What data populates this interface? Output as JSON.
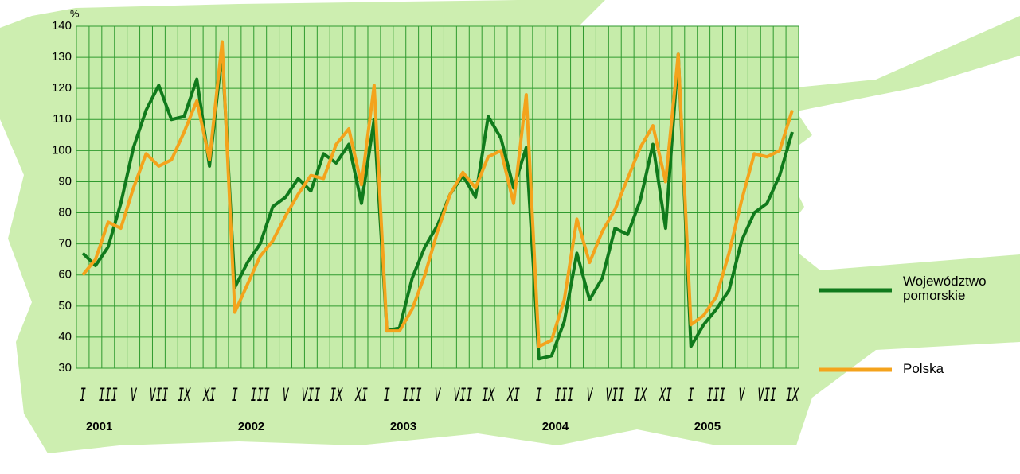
{
  "chart_data": {
    "type": "line",
    "y_unit": "%",
    "categories": [
      "I",
      null,
      "III",
      null,
      "V",
      null,
      "VII",
      null,
      "IX",
      null,
      "XI",
      null,
      "I",
      null,
      "III",
      null,
      "V",
      null,
      "VII",
      null,
      "IX",
      null,
      "XI",
      null,
      "I",
      null,
      "III",
      null,
      "V",
      null,
      "VII",
      null,
      "IX",
      null,
      "XI",
      null,
      "I",
      null,
      "III",
      null,
      "V",
      null,
      "VII",
      null,
      "IX",
      null,
      "XI",
      null,
      "I",
      null,
      "III",
      null,
      "V",
      null,
      "VII",
      null,
      "IX"
    ],
    "year_labels": [
      "2001",
      "2002",
      "2003",
      "2004",
      "2005"
    ],
    "series": [
      {
        "name": "Województwo pomorskie",
        "color": "#107a1c",
        "values": [
          67,
          63,
          69,
          83,
          101,
          113,
          121,
          110,
          111,
          123,
          95,
          132,
          56,
          64,
          70,
          82,
          85,
          91,
          87,
          99,
          96,
          102,
          83,
          110,
          42,
          43,
          59,
          69,
          76,
          86,
          92,
          85,
          111,
          104,
          88,
          101,
          33,
          34,
          45,
          67,
          52,
          59,
          75,
          73,
          84,
          102,
          75,
          131,
          37,
          44,
          49,
          55,
          71,
          80,
          83,
          92,
          106
        ]
      },
      {
        "name": "Polska",
        "color": "#f4a31c",
        "values": [
          60,
          65,
          77,
          75,
          88,
          99,
          95,
          97,
          106,
          116,
          97,
          135,
          48,
          57,
          66,
          71,
          79,
          86,
          92,
          91,
          102,
          107,
          89,
          121,
          42,
          42,
          49,
          60,
          74,
          86,
          93,
          88,
          98,
          100,
          83,
          118,
          37,
          39,
          52,
          78,
          64,
          74,
          81,
          91,
          101,
          108,
          90,
          131,
          44,
          47,
          53,
          67,
          84,
          99,
          98,
          100,
          113
        ]
      }
    ],
    "ylim": [
      30,
      140
    ],
    "yticks": [
      30,
      40,
      50,
      60,
      70,
      80,
      90,
      100,
      110,
      120,
      130,
      140
    ],
    "grid": true,
    "legend": "right"
  }
}
